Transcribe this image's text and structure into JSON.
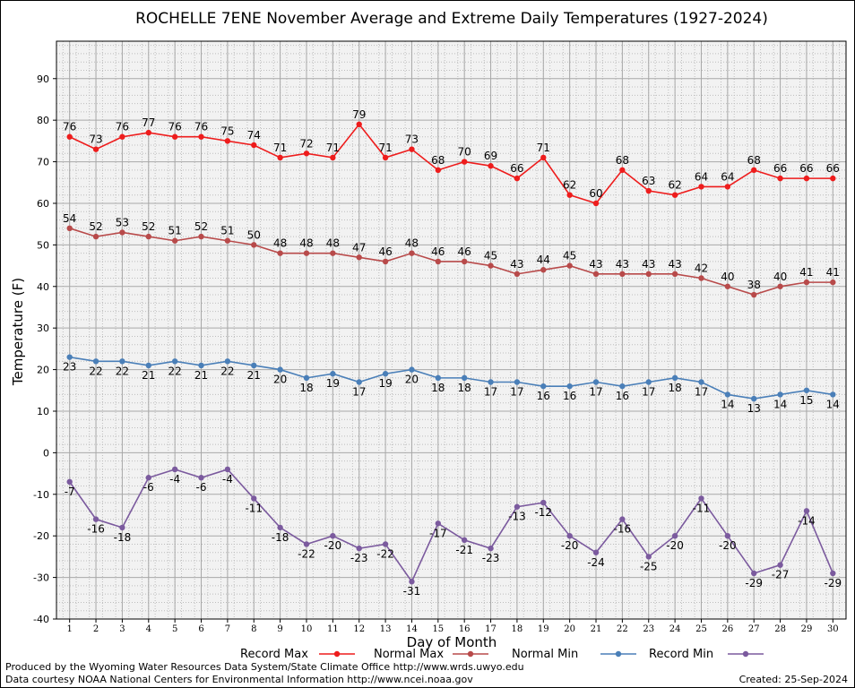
{
  "footer": {
    "produced_by": "Produced by the Wyoming Water Resources Data System/State Climate Office http://www.wrds.uwyo.edu",
    "courtesy": "Data courtesy NOAA National Centers for Environmental Information http://www.ncei.noaa.gov",
    "created": "Created:  25-Sep-2024"
  },
  "chart_data": {
    "type": "line",
    "title": "ROCHELLE 7ENE November Average and Extreme Daily Temperatures (1927-2024)",
    "xlabel": "Day of Month",
    "ylabel": "Temperature (F)",
    "ylim": [
      -40,
      99
    ],
    "yticks": [
      -40,
      -30,
      -20,
      -10,
      0,
      10,
      20,
      30,
      40,
      50,
      60,
      70,
      80,
      90
    ],
    "grid": true,
    "legend_position": "bottom",
    "x": [
      1,
      2,
      3,
      4,
      5,
      6,
      7,
      8,
      9,
      10,
      11,
      12,
      13,
      14,
      15,
      16,
      17,
      18,
      19,
      20,
      21,
      22,
      23,
      24,
      25,
      26,
      27,
      28,
      29,
      30
    ],
    "series": [
      {
        "name": "Record Max",
        "color": "#ee1c1c",
        "label_pos": "above",
        "values": [
          76,
          73,
          76,
          77,
          76,
          76,
          75,
          74,
          71,
          72,
          71,
          79,
          71,
          73,
          68,
          70,
          69,
          66,
          71,
          62,
          60,
          68,
          63,
          62,
          64,
          64,
          68,
          66,
          66,
          66
        ]
      },
      {
        "name": "Normal Max",
        "color": "#b84a4a",
        "label_pos": "above",
        "values": [
          54,
          52,
          53,
          52,
          51,
          52,
          51,
          50,
          48,
          48,
          48,
          47,
          46,
          48,
          46,
          46,
          45,
          43,
          44,
          45,
          43,
          43,
          43,
          43,
          42,
          40,
          38,
          40,
          41,
          41
        ]
      },
      {
        "name": "Normal Min",
        "color": "#4a7fb8",
        "label_pos": "below",
        "values": [
          23,
          22,
          22,
          21,
          22,
          21,
          22,
          21,
          20,
          18,
          19,
          17,
          19,
          20,
          18,
          18,
          17,
          17,
          16,
          16,
          17,
          16,
          17,
          18,
          17,
          14,
          13,
          14,
          15,
          14
        ]
      },
      {
        "name": "Record Min",
        "color": "#7b5a9e",
        "label_pos": "below",
        "values": [
          -7,
          -16,
          -18,
          -6,
          -4,
          -6,
          -4,
          -11,
          -18,
          -22,
          -20,
          -23,
          -22,
          -31,
          -17,
          -21,
          -23,
          -13,
          -12,
          -20,
          -24,
          -16,
          -25,
          -20,
          -11,
          -20,
          -29,
          -27,
          -14,
          -29
        ]
      }
    ]
  }
}
